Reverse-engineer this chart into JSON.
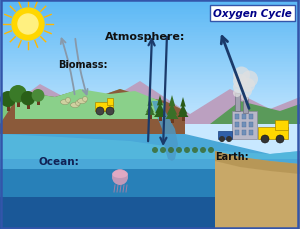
{
  "title": "Oxygen Cycle",
  "labels": {
    "atmosphere": "Atmosphere:",
    "biomass": "Biomass:",
    "ocean": "Ocean:",
    "earth": "Earth:"
  },
  "sky_top": "#5BB8F5",
  "sky_bottom": "#C8E8FF",
  "mountain_color": "#BBA0C0",
  "mountain_shadow": "#A888B0",
  "land_green": "#7DC87D",
  "land_green2": "#5AA85A",
  "land_brown": "#8B5A3A",
  "ocean_top": "#4AA8D8",
  "ocean_mid": "#2880B8",
  "ocean_bottom": "#1A5898",
  "ocean_deep": "#1A4878",
  "sand_color": "#C8A868",
  "sand_dark": "#A88848",
  "green_right": "#5A9A5A",
  "arrow_gray": "#8899AA",
  "arrow_dark": "#1A3A6A",
  "sun_color": "#FFD700",
  "sun_inner": "#FFF080",
  "smoke_color": "#CCCCCC",
  "border_color": "#3355AA",
  "title_box": "#FFFFFF",
  "text_color": "#111111",
  "tree_dark": "#2A5A1A",
  "tree_mid": "#3A7A2A",
  "tree_light": "#4A8A3A",
  "trunk_color": "#6B3A1F"
}
